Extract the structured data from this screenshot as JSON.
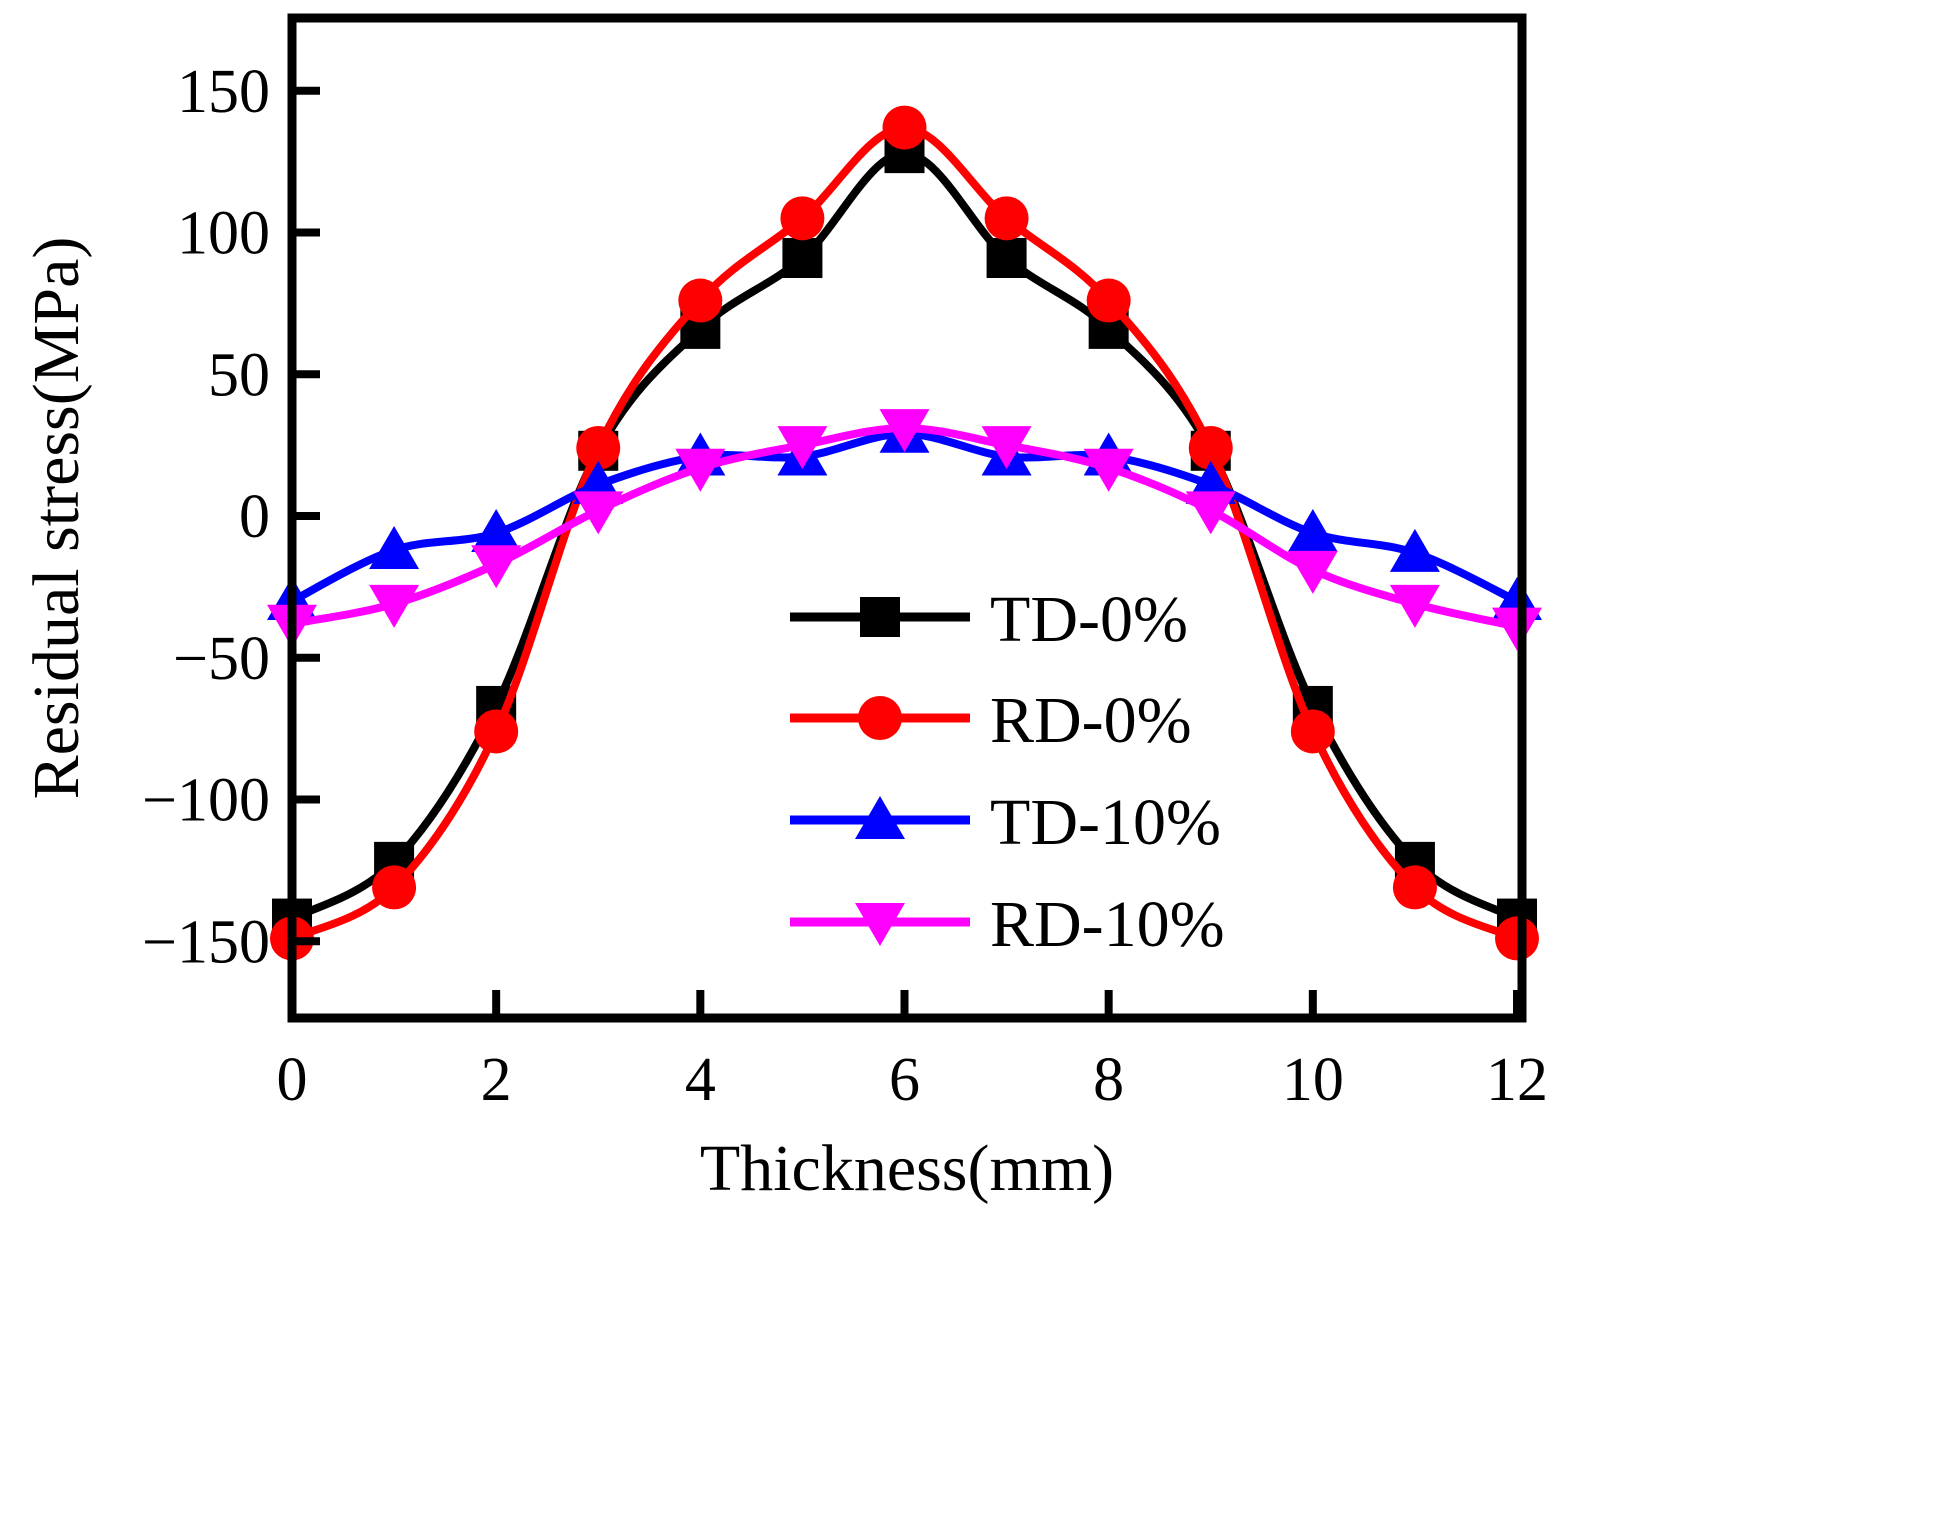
{
  "chart_data": {
    "type": "line",
    "title": "",
    "xlabel": "Thickness(mm)",
    "ylabel": "Residual stress(MPa)",
    "xlim": [
      0,
      12
    ],
    "ylim": [
      -175,
      175
    ],
    "xticks": [
      0,
      2,
      4,
      6,
      8,
      10,
      12
    ],
    "yticks": [
      -150,
      -100,
      -50,
      0,
      50,
      100,
      150
    ],
    "ytick_labels": [
      "−150",
      "−100",
      "−50",
      "0",
      "50",
      "100",
      "150"
    ],
    "grid": false,
    "legend_position": "lower-right",
    "x": [
      0,
      1,
      2,
      3,
      4,
      5,
      6,
      7,
      8,
      9,
      10,
      11,
      12
    ],
    "series": [
      {
        "name": "TD-0%",
        "color": "#000000",
        "marker": "square",
        "values": [
          -142,
          -122,
          -67,
          23,
          66,
          91,
          128,
          91,
          66,
          23,
          -67,
          -122,
          -142
        ]
      },
      {
        "name": "RD-0%",
        "color": "#ff0000",
        "marker": "circle",
        "values": [
          -149,
          -131,
          -76,
          24,
          76,
          105,
          137,
          105,
          76,
          24,
          -76,
          -131,
          -149
        ]
      },
      {
        "name": "TD-10%",
        "color": "#0000ff",
        "marker": "triangle-up",
        "values": [
          -30,
          -12,
          -6,
          11,
          21,
          21,
          29,
          21,
          21,
          11,
          -6,
          -13,
          -30
        ]
      },
      {
        "name": "RD-10%",
        "color": "#ff00ff",
        "marker": "triangle-down",
        "values": [
          -38,
          -31,
          -17,
          2,
          17,
          25,
          31,
          25,
          17,
          2,
          -19,
          -31,
          -39
        ]
      }
    ]
  }
}
